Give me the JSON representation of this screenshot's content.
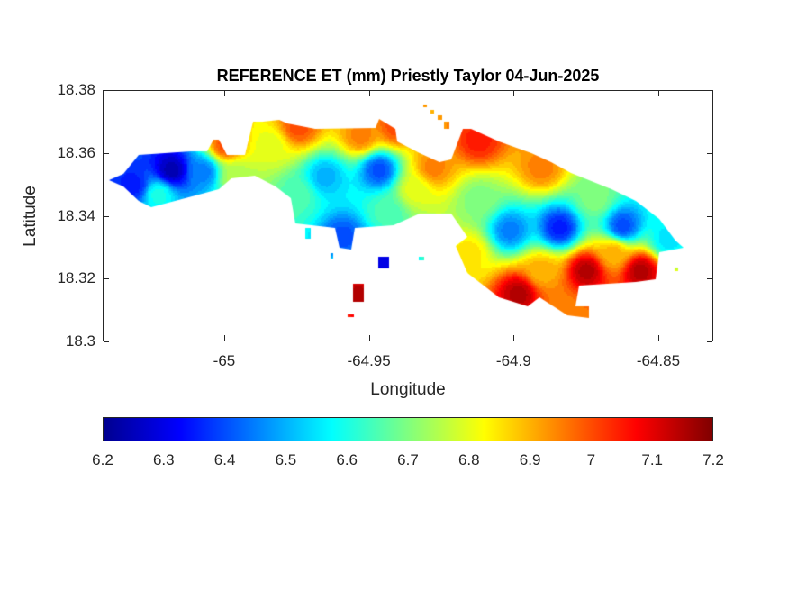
{
  "chart_data": {
    "type": "heatmap",
    "title": "REFERENCE ET (mm) Priestly Taylor 04-Jun-2025",
    "xlabel": "Longitude",
    "ylabel": "Latitude",
    "xlim": [
      -65.042,
      -64.831
    ],
    "ylim": [
      18.3,
      18.38
    ],
    "xticks": [
      -65,
      -64.95,
      -64.9,
      -64.85
    ],
    "xtick_labels": [
      "-65",
      "-64.95",
      "-64.9",
      "-64.85"
    ],
    "yticks": [
      18.3,
      18.32,
      18.34,
      18.36,
      18.38
    ],
    "ytick_labels": [
      "18.3",
      "18.32",
      "18.34",
      "18.36",
      "18.38"
    ],
    "colormap": "jet",
    "clim": [
      6.2,
      7.2
    ],
    "colorbar_location": "south",
    "colorbar_ticks": [
      6.2,
      6.3,
      6.4,
      6.5,
      6.6,
      6.7,
      6.8,
      6.9,
      7,
      7.1,
      7.2
    ],
    "colorbar_tick_labels": [
      "6.2",
      "6.3",
      "6.4",
      "6.5",
      "6.6",
      "6.7",
      "6.8",
      "6.9",
      "7",
      "7.1",
      "7.2"
    ],
    "grid": false,
    "sample_points": [
      {
        "lon": -65.0184,
        "lat": 18.3548,
        "value": 6.25
      },
      {
        "lon": -65.0315,
        "lat": 18.3499,
        "value": 6.35
      },
      {
        "lon": -65.0075,
        "lat": 18.3542,
        "value": 6.45
      },
      {
        "lon": -65.023,
        "lat": 18.347,
        "value": 6.6
      },
      {
        "lon": -64.9966,
        "lat": 18.3528,
        "value": 6.75
      },
      {
        "lon": -64.9467,
        "lat": 18.3548,
        "value": 6.4
      },
      {
        "lon": -64.9654,
        "lat": 18.3528,
        "value": 6.5
      },
      {
        "lon": -64.9748,
        "lat": 18.347,
        "value": 6.65
      },
      {
        "lon": -64.9841,
        "lat": 18.3628,
        "value": 6.8
      },
      {
        "lon": -64.9748,
        "lat": 18.3685,
        "value": 7.0
      },
      {
        "lon": -64.953,
        "lat": 18.3657,
        "value": 6.95
      },
      {
        "lon": -64.9592,
        "lat": 18.3336,
        "value": 6.4
      },
      {
        "lon": -64.9436,
        "lat": 18.3413,
        "value": 6.65
      },
      {
        "lon": -64.9343,
        "lat": 18.3485,
        "value": 6.8
      },
      {
        "lon": -64.928,
        "lat": 18.3556,
        "value": 6.95
      },
      {
        "lon": -64.9125,
        "lat": 18.3642,
        "value": 7.05
      },
      {
        "lon": -64.8907,
        "lat": 18.3556,
        "value": 6.95
      },
      {
        "lon": -64.9125,
        "lat": 18.3456,
        "value": 6.7
      },
      {
        "lon": -64.9016,
        "lat": 18.3356,
        "value": 6.45
      },
      {
        "lon": -64.8844,
        "lat": 18.3364,
        "value": 6.35
      },
      {
        "lon": -64.8626,
        "lat": 18.337,
        "value": 6.4
      },
      {
        "lon": -64.872,
        "lat": 18.3456,
        "value": 6.7
      },
      {
        "lon": -64.847,
        "lat": 18.3327,
        "value": 6.55
      },
      {
        "lon": -64.9156,
        "lat": 18.3284,
        "value": 6.85
      },
      {
        "lon": -64.8985,
        "lat": 18.3155,
        "value": 7.15
      },
      {
        "lon": -64.8907,
        "lat": 18.3227,
        "value": 6.9
      },
      {
        "lon": -64.8751,
        "lat": 18.3227,
        "value": 7.15
      },
      {
        "lon": -64.8564,
        "lat": 18.3227,
        "value": 7.15
      },
      {
        "lon": -64.8829,
        "lat": 18.3098,
        "value": 6.95
      },
      {
        "lon": -64.8657,
        "lat": 18.3284,
        "value": 6.9
      },
      {
        "lon": -64.9536,
        "lat": 18.3155,
        "value": 7.15
      },
      {
        "lon": -64.9448,
        "lat": 18.325,
        "value": 6.3
      },
      {
        "lon": -64.9997,
        "lat": 18.3628,
        "value": 7.0
      },
      {
        "lon": -64.941,
        "lat": 18.3685,
        "value": 7.0
      }
    ]
  }
}
